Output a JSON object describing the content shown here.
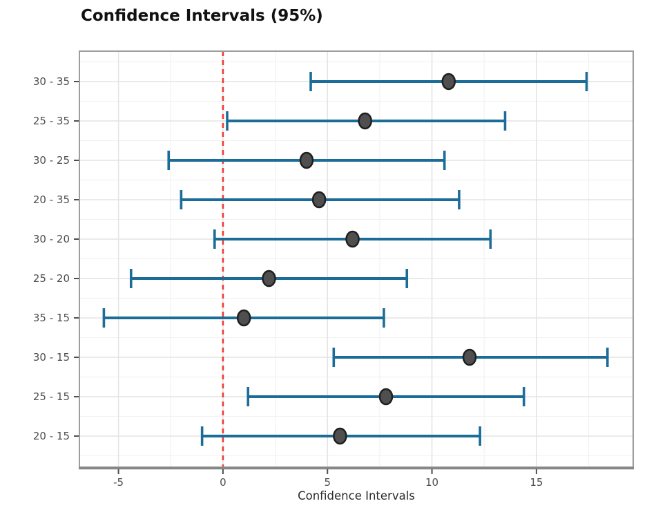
{
  "chart_data": {
    "type": "scatter",
    "subtype": "horizontal-errorbar",
    "title": "Confidence Intervals (95%)",
    "xlabel": "Confidence Intervals",
    "ylabel": "",
    "xlim": [
      -6.87,
      19.63
    ],
    "xticks": [
      -5,
      0,
      5,
      10,
      15
    ],
    "xtick_labels": [
      "-5",
      "0",
      "5",
      "10",
      "15"
    ],
    "minor_xticks": [
      -2.5,
      2.5,
      7.5,
      12.5,
      17.5
    ],
    "grid": true,
    "legend": false,
    "reference_line": {
      "x": 0,
      "style": "dashed"
    },
    "categories": [
      "30 - 35",
      "25 - 35",
      "30 - 25",
      "20 - 35",
      "30 - 20",
      "25 - 20",
      "35 - 15",
      "30 - 15",
      "25 - 15",
      "20 - 15"
    ],
    "series": [
      {
        "name": "95% confidence intervals",
        "points": [
          {
            "pair": "30 - 35",
            "low": 4.2,
            "mid": 10.8,
            "high": 17.4
          },
          {
            "pair": "25 - 35",
            "low": 0.2,
            "mid": 6.8,
            "high": 13.5
          },
          {
            "pair": "30 - 25",
            "low": -2.6,
            "mid": 4.0,
            "high": 10.6
          },
          {
            "pair": "20 - 35",
            "low": -2.0,
            "mid": 4.6,
            "high": 11.3
          },
          {
            "pair": "30 - 20",
            "low": -0.4,
            "mid": 6.2,
            "high": 12.8
          },
          {
            "pair": "25 - 20",
            "low": -4.4,
            "mid": 2.2,
            "high": 8.8
          },
          {
            "pair": "35 - 15",
            "low": -5.7,
            "mid": 1.0,
            "high": 7.7
          },
          {
            "pair": "30 - 15",
            "low": 5.3,
            "mid": 11.8,
            "high": 18.4
          },
          {
            "pair": "25 - 15",
            "low": 1.2,
            "mid": 7.8,
            "high": 14.4
          },
          {
            "pair": "20 - 15",
            "low": -1.0,
            "mid": 5.6,
            "high": 12.3
          }
        ]
      }
    ],
    "colors": {
      "errorbar": "#1b6d98",
      "point_fill": "#4f4f4f",
      "point_stroke": "#1f1f1f",
      "reference_line": "#f03c32",
      "grid_major": "#e4e4e4",
      "grid_minor": "#f2f2f2",
      "panel_border": "#9e9e9e",
      "axis_line": "#878787",
      "tick_mark": "#4d4d4d",
      "tick_label": "#4d4d4d",
      "axis_title": "#2b2b2b",
      "title": "#111111",
      "panel_background": "#ffffff"
    }
  }
}
